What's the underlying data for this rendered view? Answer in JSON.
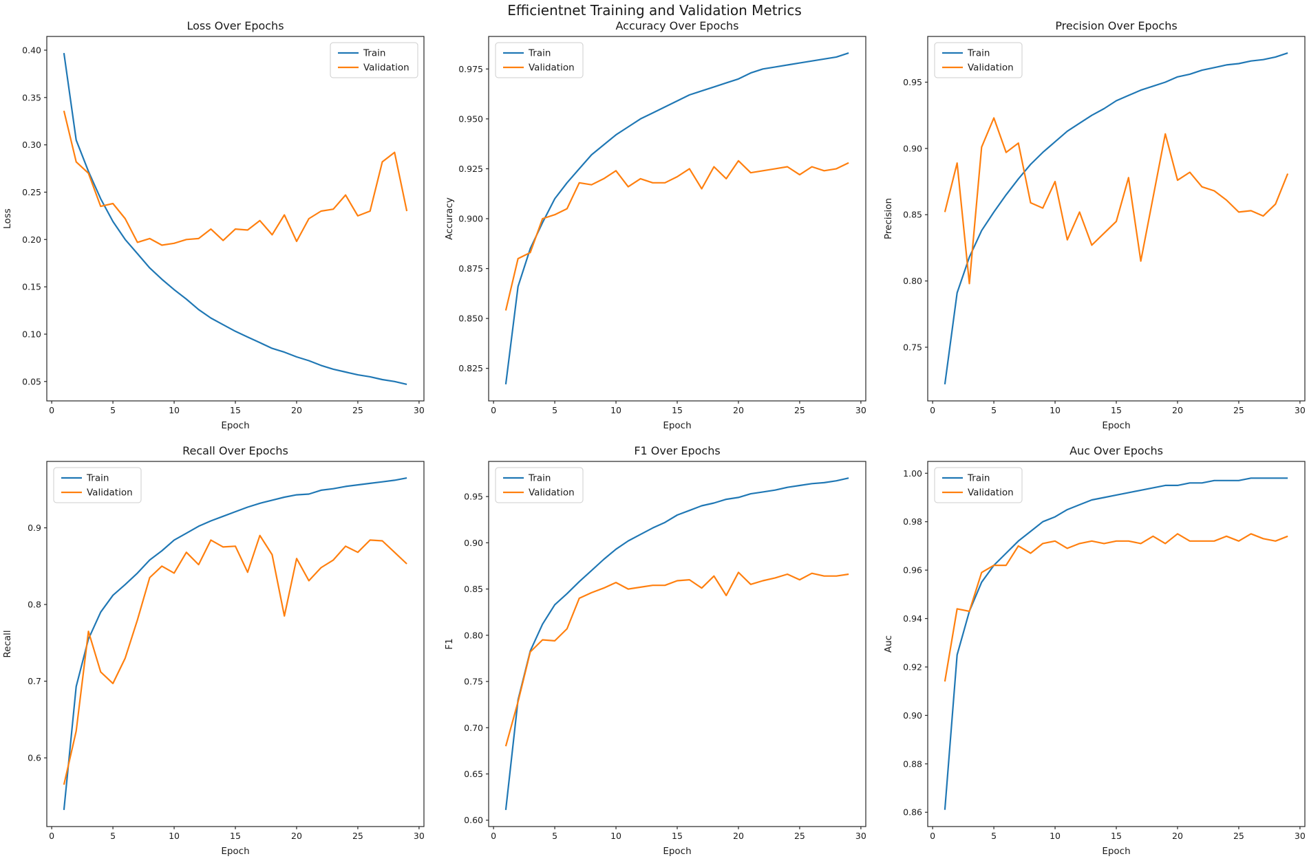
{
  "figure": {
    "suptitle": "Efficientnet Training and Validation Metrics",
    "background": "#ffffff",
    "text_color": "#1a1a1a",
    "train_color": "#1f77b4",
    "validation_color": "#ff7f0e",
    "legend_labels": [
      "Train",
      "Validation"
    ],
    "epochs": [
      1,
      2,
      3,
      4,
      5,
      6,
      7,
      8,
      9,
      10,
      11,
      12,
      13,
      14,
      15,
      16,
      17,
      18,
      19,
      20,
      21,
      22,
      23,
      24,
      25,
      26,
      27,
      28,
      29
    ]
  },
  "chart_data": [
    {
      "id": "loss",
      "type": "line",
      "title": "Loss Over Epochs",
      "xlabel": "Epoch",
      "ylabel": "Loss",
      "legend_position": "upper-right",
      "grid": false,
      "xlim": [
        -0.4,
        30.4
      ],
      "ylim": [
        0.0295,
        0.4145
      ],
      "xticks": [
        0,
        5,
        10,
        15,
        20,
        25,
        30
      ],
      "xtick_labels": [
        "0",
        "5",
        "10",
        "15",
        "20",
        "25",
        "30"
      ],
      "yticks": [
        0.05,
        0.1,
        0.15,
        0.2,
        0.25,
        0.3,
        0.35,
        0.4
      ],
      "ytick_labels": [
        "0.05",
        "0.10",
        "0.15",
        "0.20",
        "0.25",
        "0.30",
        "0.35",
        "0.40"
      ],
      "series": [
        {
          "name": "Train",
          "color": "#1f77b4",
          "values": [
            0.397,
            0.305,
            0.272,
            0.243,
            0.219,
            0.2,
            0.185,
            0.17,
            0.158,
            0.147,
            0.137,
            0.126,
            0.117,
            0.11,
            0.103,
            0.097,
            0.091,
            0.085,
            0.081,
            0.076,
            0.072,
            0.067,
            0.063,
            0.06,
            0.057,
            0.055,
            0.052,
            0.05,
            0.047
          ]
        },
        {
          "name": "Validation",
          "color": "#ff7f0e",
          "values": [
            0.336,
            0.282,
            0.27,
            0.235,
            0.238,
            0.222,
            0.197,
            0.201,
            0.194,
            0.196,
            0.2,
            0.201,
            0.211,
            0.199,
            0.211,
            0.21,
            0.22,
            0.205,
            0.226,
            0.198,
            0.222,
            0.23,
            0.232,
            0.247,
            0.225,
            0.23,
            0.282,
            0.292,
            0.23
          ]
        }
      ]
    },
    {
      "id": "accuracy",
      "type": "line",
      "title": "Accuracy Over Epochs",
      "xlabel": "Epoch",
      "ylabel": "Accuracy",
      "legend_position": "upper-left",
      "grid": false,
      "xlim": [
        -0.4,
        30.4
      ],
      "ylim": [
        0.8087,
        0.9913
      ],
      "xticks": [
        0,
        5,
        10,
        15,
        20,
        25,
        30
      ],
      "xtick_labels": [
        "0",
        "5",
        "10",
        "15",
        "20",
        "25",
        "30"
      ],
      "yticks": [
        0.825,
        0.85,
        0.875,
        0.9,
        0.925,
        0.95,
        0.975
      ],
      "ytick_labels": [
        "0.825",
        "0.850",
        "0.875",
        "0.900",
        "0.925",
        "0.950",
        "0.975"
      ],
      "series": [
        {
          "name": "Train",
          "color": "#1f77b4",
          "values": [
            0.817,
            0.866,
            0.885,
            0.898,
            0.91,
            0.918,
            0.925,
            0.932,
            0.937,
            0.942,
            0.946,
            0.95,
            0.953,
            0.956,
            0.959,
            0.962,
            0.964,
            0.966,
            0.968,
            0.97,
            0.973,
            0.975,
            0.976,
            0.977,
            0.978,
            0.979,
            0.98,
            0.981,
            0.983
          ]
        },
        {
          "name": "Validation",
          "color": "#ff7f0e",
          "values": [
            0.854,
            0.88,
            0.883,
            0.9,
            0.902,
            0.905,
            0.918,
            0.917,
            0.92,
            0.924,
            0.916,
            0.92,
            0.918,
            0.918,
            0.921,
            0.925,
            0.915,
            0.926,
            0.92,
            0.929,
            0.923,
            0.924,
            0.925,
            0.926,
            0.922,
            0.926,
            0.924,
            0.925,
            0.928
          ]
        }
      ]
    },
    {
      "id": "precision",
      "type": "line",
      "title": "Precision Over Epochs",
      "xlabel": "Epoch",
      "ylabel": "Precision",
      "legend_position": "upper-left",
      "grid": false,
      "xlim": [
        -0.4,
        30.4
      ],
      "ylim": [
        0.7095,
        0.9845
      ],
      "xticks": [
        0,
        5,
        10,
        15,
        20,
        25,
        30
      ],
      "xtick_labels": [
        "0",
        "5",
        "10",
        "15",
        "20",
        "25",
        "30"
      ],
      "yticks": [
        0.75,
        0.8,
        0.85,
        0.9,
        0.95
      ],
      "ytick_labels": [
        "0.75",
        "0.80",
        "0.85",
        "0.90",
        "0.95"
      ],
      "series": [
        {
          "name": "Train",
          "color": "#1f77b4",
          "values": [
            0.722,
            0.791,
            0.818,
            0.838,
            0.852,
            0.865,
            0.877,
            0.888,
            0.897,
            0.905,
            0.913,
            0.919,
            0.925,
            0.93,
            0.936,
            0.94,
            0.944,
            0.947,
            0.95,
            0.954,
            0.956,
            0.959,
            0.961,
            0.963,
            0.964,
            0.966,
            0.967,
            0.969,
            0.972
          ]
        },
        {
          "name": "Validation",
          "color": "#ff7f0e",
          "values": [
            0.852,
            0.889,
            0.798,
            0.901,
            0.923,
            0.897,
            0.904,
            0.859,
            0.855,
            0.875,
            0.831,
            0.852,
            0.827,
            0.836,
            0.845,
            0.878,
            0.815,
            0.863,
            0.911,
            0.876,
            0.882,
            0.871,
            0.868,
            0.861,
            0.852,
            0.853,
            0.849,
            0.858,
            0.881
          ]
        }
      ]
    },
    {
      "id": "recall",
      "type": "line",
      "title": "Recall Over Epochs",
      "xlabel": "Epoch",
      "ylabel": "Recall",
      "legend_position": "upper-left",
      "grid": false,
      "xlim": [
        -0.4,
        30.4
      ],
      "ylim": [
        0.5104,
        0.9866
      ],
      "xticks": [
        0,
        5,
        10,
        15,
        20,
        25,
        30
      ],
      "xtick_labels": [
        "0",
        "5",
        "10",
        "15",
        "20",
        "25",
        "30"
      ],
      "yticks": [
        0.6,
        0.7,
        0.8,
        0.9
      ],
      "ytick_labels": [
        "0.6",
        "0.7",
        "0.8",
        "0.9"
      ],
      "series": [
        {
          "name": "Train",
          "color": "#1f77b4",
          "values": [
            0.532,
            0.693,
            0.755,
            0.79,
            0.812,
            0.826,
            0.841,
            0.858,
            0.87,
            0.884,
            0.893,
            0.902,
            0.909,
            0.915,
            0.921,
            0.927,
            0.932,
            0.936,
            0.94,
            0.943,
            0.944,
            0.949,
            0.951,
            0.954,
            0.956,
            0.958,
            0.96,
            0.962,
            0.965
          ]
        },
        {
          "name": "Validation",
          "color": "#ff7f0e",
          "values": [
            0.565,
            0.635,
            0.765,
            0.712,
            0.697,
            0.73,
            0.78,
            0.835,
            0.85,
            0.841,
            0.868,
            0.852,
            0.884,
            0.875,
            0.876,
            0.842,
            0.89,
            0.865,
            0.785,
            0.86,
            0.831,
            0.848,
            0.858,
            0.876,
            0.868,
            0.884,
            0.883,
            0.868,
            0.853
          ]
        }
      ]
    },
    {
      "id": "f1",
      "type": "line",
      "title": "F1 Over Epochs",
      "xlabel": "Epoch",
      "ylabel": "F1",
      "legend_position": "upper-left",
      "grid": false,
      "xlim": [
        -0.4,
        30.4
      ],
      "ylim": [
        0.5931,
        0.988
      ],
      "xticks": [
        0,
        5,
        10,
        15,
        20,
        25,
        30
      ],
      "xtick_labels": [
        "0",
        "5",
        "10",
        "15",
        "20",
        "25",
        "30"
      ],
      "yticks": [
        0.6,
        0.65,
        0.7,
        0.75,
        0.8,
        0.85,
        0.9,
        0.95
      ],
      "ytick_labels": [
        "0.60",
        "0.65",
        "0.70",
        "0.75",
        "0.80",
        "0.85",
        "0.90",
        "0.95"
      ],
      "series": [
        {
          "name": "Train",
          "color": "#1f77b4",
          "values": [
            0.611,
            0.73,
            0.783,
            0.812,
            0.833,
            0.845,
            0.858,
            0.87,
            0.882,
            0.893,
            0.902,
            0.909,
            0.916,
            0.922,
            0.93,
            0.935,
            0.94,
            0.943,
            0.947,
            0.949,
            0.953,
            0.955,
            0.957,
            0.96,
            0.962,
            0.964,
            0.965,
            0.967,
            0.97
          ]
        },
        {
          "name": "Validation",
          "color": "#ff7f0e",
          "values": [
            0.68,
            0.728,
            0.782,
            0.795,
            0.794,
            0.807,
            0.84,
            0.846,
            0.851,
            0.857,
            0.85,
            0.852,
            0.854,
            0.854,
            0.859,
            0.86,
            0.851,
            0.864,
            0.843,
            0.868,
            0.855,
            0.859,
            0.862,
            0.866,
            0.86,
            0.867,
            0.864,
            0.864,
            0.866
          ]
        }
      ]
    },
    {
      "id": "auc",
      "type": "line",
      "title": "Auc Over Epochs",
      "xlabel": "Epoch",
      "ylabel": "Auc",
      "legend_position": "upper-left",
      "grid": false,
      "xlim": [
        -0.4,
        30.4
      ],
      "ylim": [
        0.8541,
        1.0049
      ],
      "xticks": [
        0,
        5,
        10,
        15,
        20,
        25,
        30
      ],
      "xtick_labels": [
        "0",
        "5",
        "10",
        "15",
        "20",
        "25",
        "30"
      ],
      "yticks": [
        0.86,
        0.88,
        0.9,
        0.92,
        0.94,
        0.96,
        0.98,
        1.0
      ],
      "ytick_labels": [
        "0.86",
        "0.88",
        "0.90",
        "0.92",
        "0.94",
        "0.96",
        "0.98",
        "1.00"
      ],
      "series": [
        {
          "name": "Train",
          "color": "#1f77b4",
          "values": [
            0.861,
            0.925,
            0.943,
            0.955,
            0.962,
            0.967,
            0.972,
            0.976,
            0.98,
            0.982,
            0.985,
            0.987,
            0.989,
            0.99,
            0.991,
            0.992,
            0.993,
            0.994,
            0.995,
            0.995,
            0.996,
            0.996,
            0.997,
            0.997,
            0.997,
            0.998,
            0.998,
            0.998,
            0.998
          ]
        },
        {
          "name": "Validation",
          "color": "#ff7f0e",
          "values": [
            0.914,
            0.944,
            0.943,
            0.959,
            0.962,
            0.962,
            0.97,
            0.967,
            0.971,
            0.972,
            0.969,
            0.971,
            0.972,
            0.971,
            0.972,
            0.972,
            0.971,
            0.974,
            0.971,
            0.975,
            0.972,
            0.972,
            0.972,
            0.974,
            0.972,
            0.975,
            0.973,
            0.972,
            0.974
          ]
        }
      ]
    }
  ]
}
